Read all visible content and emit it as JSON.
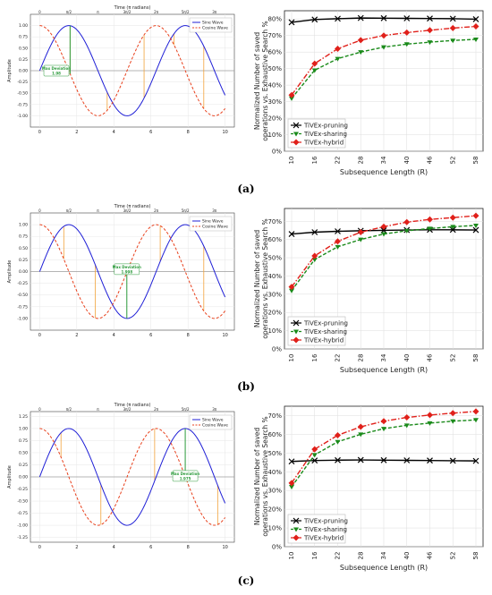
{
  "rows": [
    {
      "caption": "(a)",
      "wave": {
        "type": "line",
        "top_axis_title": "Time (π radians)",
        "top_ticks": [
          "0",
          "π/2",
          "π",
          "3π/2",
          "2π",
          "5π/2",
          "3π"
        ],
        "ylabel": "Amplitude",
        "xlim": [
          -0.5,
          10.5
        ],
        "ylim": [
          -1.25,
          1.25
        ],
        "xticks": [
          0,
          2,
          4,
          6,
          8,
          10
        ],
        "yticks": [
          -1.0,
          -0.75,
          -0.5,
          -0.25,
          0.0,
          0.25,
          0.5,
          0.75,
          1.0
        ],
        "series": [
          {
            "name": "Sine Wave",
            "color": "#1f1fd6",
            "style": "solid",
            "phase": 0
          },
          {
            "name": "Cosine Wave",
            "color": "#e8401c",
            "style": "dashed",
            "phase": 1.5708
          }
        ],
        "orange_lines_x": [
          1.64,
          3.64,
          5.63,
          7.25,
          8.85
        ],
        "max_deviation": {
          "x": 1.64,
          "label": "Max Deviation",
          "value": "1.98",
          "label_x": 0.9,
          "label_y": 0.0
        },
        "legend_position": "top-right"
      },
      "bars": {
        "type": "line",
        "ylabel_line1": "Normalized Number of saved",
        "ylabel_line2": "operations vs. Exhaustive Search %",
        "xlabel": "Subsequence Length (R)",
        "categories": [
          "10",
          "16",
          "22",
          "28",
          "34",
          "40",
          "46",
          "52",
          "58"
        ],
        "ylim": [
          0,
          0.85
        ],
        "yticks": [
          0,
          0.1,
          0.2,
          0.3,
          0.4,
          0.5,
          0.6,
          0.7,
          0.8
        ],
        "ytick_labels": [
          "0%",
          "10%",
          "20%",
          "30%",
          "40%",
          "50%",
          "60%",
          "70%",
          "80%"
        ],
        "series": [
          {
            "name": "TiVEx-pruning",
            "color": "#000000",
            "marker": "x",
            "style": "solid",
            "values": [
              0.78,
              0.797,
              0.802,
              0.806,
              0.805,
              0.804,
              0.803,
              0.802,
              0.799
            ]
          },
          {
            "name": "TiVEx-sharing",
            "color": "#1a8a1a",
            "marker": "triangle",
            "style": "dashed",
            "values": [
              0.32,
              0.49,
              0.56,
              0.6,
              0.63,
              0.648,
              0.66,
              0.67,
              0.677
            ]
          },
          {
            "name": "TiVEx-hybrid",
            "color": "#e0201a",
            "marker": "diamond",
            "style": "dashdot",
            "values": [
              0.34,
              0.53,
              0.62,
              0.672,
              0.7,
              0.718,
              0.732,
              0.745,
              0.755
            ]
          }
        ],
        "legend_position": "lower-left"
      }
    },
    {
      "caption": "(b)",
      "wave": {
        "type": "line",
        "top_axis_title": "Time (π radians)",
        "top_ticks": [
          "0",
          "π/2",
          "π",
          "3π/2",
          "2π",
          "5π/2",
          "3π"
        ],
        "ylabel": "Amplitude",
        "xlim": [
          -0.5,
          10.5
        ],
        "ylim": [
          -1.25,
          1.25
        ],
        "xticks": [
          0,
          2,
          4,
          6,
          8,
          10
        ],
        "yticks": [
          -1.0,
          -0.75,
          -0.5,
          -0.25,
          0.0,
          0.25,
          0.5,
          0.75,
          1.0
        ],
        "series": [
          {
            "name": "Sine Wave",
            "color": "#1f1fd6",
            "style": "solid",
            "phase": 0
          },
          {
            "name": "Cosine Wave",
            "color": "#e8401c",
            "style": "dashed",
            "phase": 1.5708
          }
        ],
        "orange_lines_x": [
          1.3,
          3.0,
          6.5,
          8.85
        ],
        "max_deviation": {
          "x": 4.7,
          "label": "Max Deviation",
          "value": "1.998",
          "label_x": 4.7,
          "label_y": 0.05
        },
        "legend_position": "top-right"
      },
      "bars": {
        "type": "line",
        "ylabel_line1": "Normalized Number of saved",
        "ylabel_line2": "operations vs. Exhaustive Search %",
        "xlabel": "Subsequence Length (R)",
        "categories": [
          "10",
          "16",
          "22",
          "28",
          "34",
          "40",
          "46",
          "52",
          "58"
        ],
        "ylim": [
          0,
          0.77
        ],
        "yticks": [
          0,
          0.1,
          0.2,
          0.3,
          0.4,
          0.5,
          0.6,
          0.7
        ],
        "ytick_labels": [
          "0%",
          "10%",
          "20%",
          "30%",
          "40%",
          "50%",
          "60%",
          "70%"
        ],
        "series": [
          {
            "name": "TiVEx-pruning",
            "color": "#000000",
            "marker": "x",
            "style": "solid",
            "values": [
              0.63,
              0.64,
              0.645,
              0.648,
              0.65,
              0.652,
              0.653,
              0.653,
              0.652
            ]
          },
          {
            "name": "TiVEx-sharing",
            "color": "#1a8a1a",
            "marker": "triangle",
            "style": "dashed",
            "values": [
              0.32,
              0.49,
              0.56,
              0.6,
              0.63,
              0.648,
              0.66,
              0.67,
              0.677
            ]
          },
          {
            "name": "TiVEx-hybrid",
            "color": "#e0201a",
            "marker": "diamond",
            "style": "dashdot",
            "values": [
              0.34,
              0.51,
              0.59,
              0.64,
              0.67,
              0.695,
              0.71,
              0.72,
              0.73
            ]
          }
        ],
        "legend_position": "lower-left"
      }
    },
    {
      "caption": "(c)",
      "wave": {
        "type": "line",
        "top_axis_title": "Time (π radians)",
        "top_ticks": [
          "0",
          "π/2",
          "π",
          "3π/2",
          "2π",
          "5π/2",
          "3π"
        ],
        "ylabel": "Amplitude",
        "xlim": [
          -0.5,
          10.5
        ],
        "ylim": [
          -1.35,
          1.35
        ],
        "xticks": [
          0,
          2,
          4,
          6,
          8,
          10
        ],
        "yticks": [
          -1.25,
          -1.0,
          -0.75,
          -0.5,
          -0.25,
          0.0,
          0.25,
          0.5,
          0.75,
          1.0,
          1.25
        ],
        "series": [
          {
            "name": "Sine Wave",
            "color": "#1f1fd6",
            "style": "solid",
            "phase": 0
          },
          {
            "name": "Cosine Wave",
            "color": "#e8401c",
            "style": "dashed",
            "phase": 1.5708
          }
        ],
        "orange_lines_x": [
          1.15,
          3.3,
          6.2,
          9.6
        ],
        "max_deviation": {
          "x": 7.85,
          "label": "Max Deviation",
          "value": "1.975",
          "label_x": 7.85,
          "label_y": 0.02
        },
        "legend_position": "top-right"
      },
      "bars": {
        "type": "line",
        "ylabel_line1": "Normalized Number of saved",
        "ylabel_line2": "operations vs. Exhaustive Search %",
        "xlabel": "Subsequence Length (R)",
        "categories": [
          "10",
          "16",
          "22",
          "28",
          "34",
          "40",
          "46",
          "52",
          "58"
        ],
        "ylim": [
          0,
          0.75
        ],
        "yticks": [
          0,
          0.1,
          0.2,
          0.3,
          0.4,
          0.5,
          0.6,
          0.7
        ],
        "ytick_labels": [
          "0%",
          "10%",
          "20%",
          "30%",
          "40%",
          "50%",
          "60%",
          "70%"
        ],
        "series": [
          {
            "name": "TiVEx-pruning",
            "color": "#000000",
            "marker": "x",
            "style": "solid",
            "values": [
              0.455,
              0.46,
              0.462,
              0.463,
              0.462,
              0.461,
              0.46,
              0.459,
              0.458
            ]
          },
          {
            "name": "TiVEx-sharing",
            "color": "#1a8a1a",
            "marker": "triangle",
            "style": "dashed",
            "values": [
              0.32,
              0.49,
              0.56,
              0.6,
              0.63,
              0.648,
              0.66,
              0.67,
              0.677
            ]
          },
          {
            "name": "TiVEx-hybrid",
            "color": "#e0201a",
            "marker": "diamond",
            "style": "dashdot",
            "values": [
              0.34,
              0.52,
              0.595,
              0.64,
              0.67,
              0.69,
              0.703,
              0.713,
              0.722
            ]
          }
        ],
        "legend_position": "lower-left"
      }
    }
  ]
}
